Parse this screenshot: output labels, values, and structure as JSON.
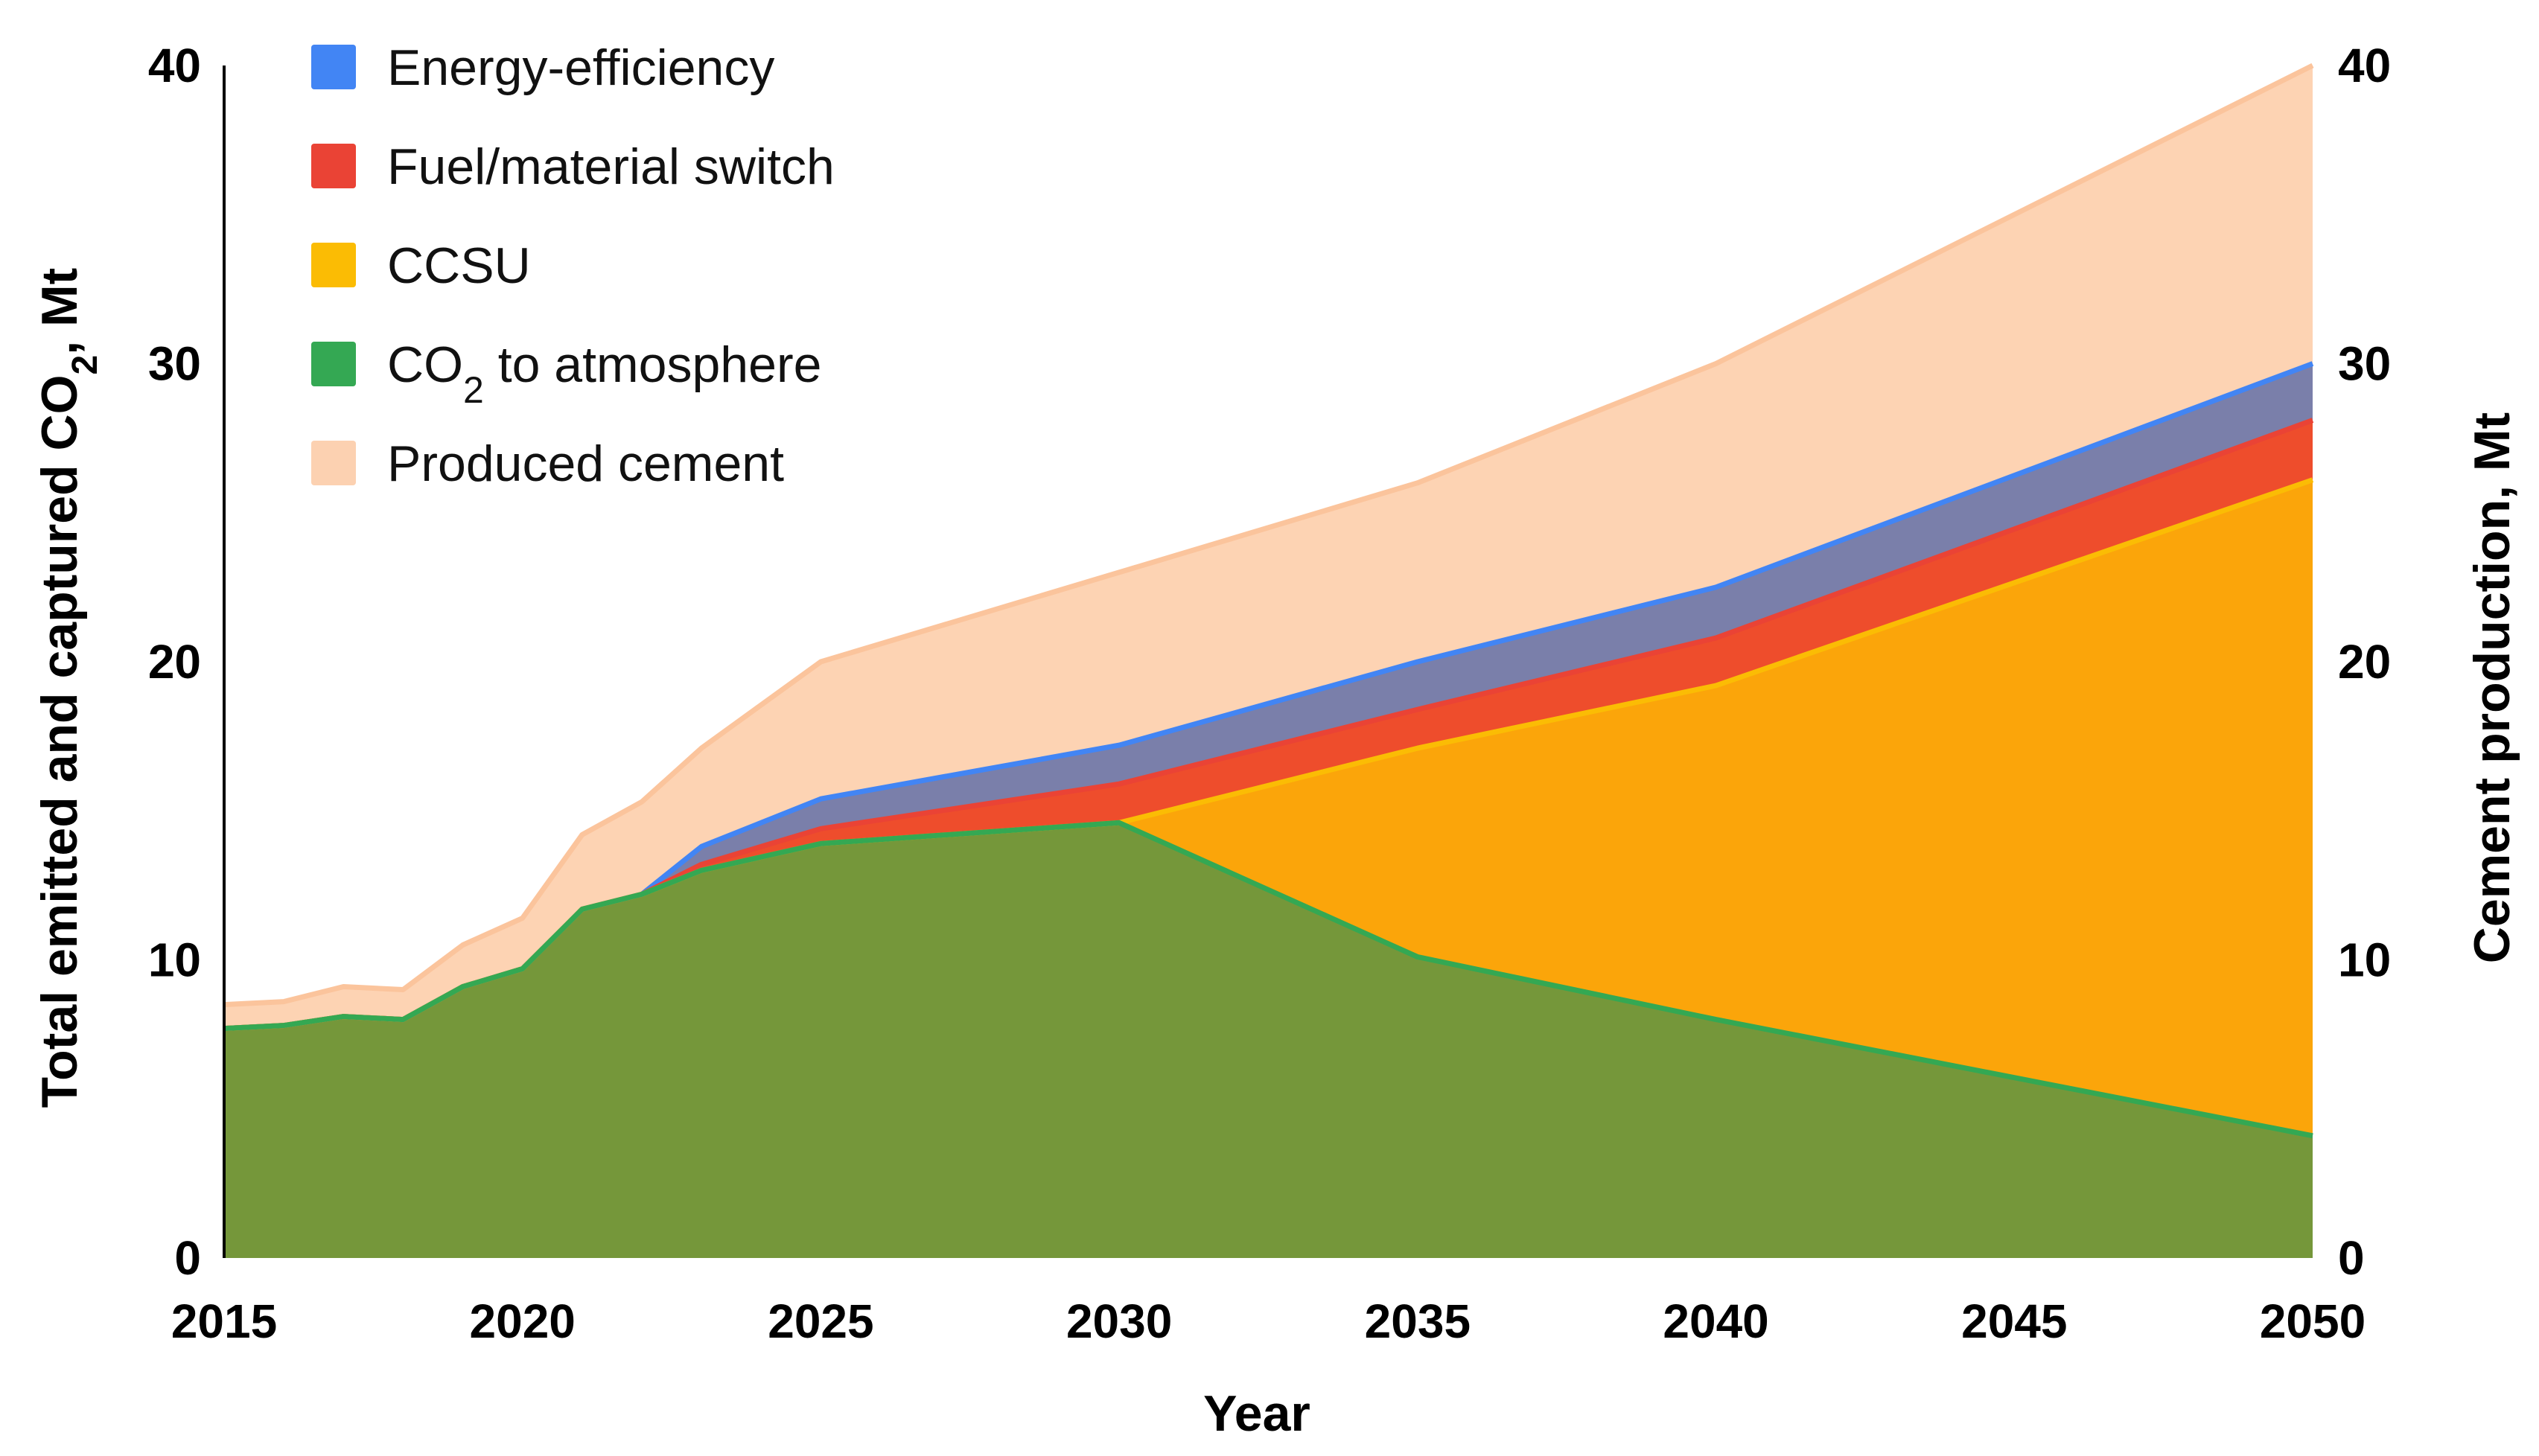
{
  "chart_data": {
    "type": "area",
    "title": "",
    "xlabel": "Year",
    "ylabel": "Total emitted and captured CO₂, Mt",
    "ylabel_parts": [
      "Total emitted and captured CO",
      "2",
      ", Mt"
    ],
    "y2label": "Cement production, Mt",
    "xlim": [
      2015,
      2050
    ],
    "ylim": [
      0,
      40
    ],
    "y2lim": [
      0,
      40
    ],
    "x_ticks": [
      "2015",
      "2020",
      "2025",
      "2030",
      "2035",
      "2040",
      "2045",
      "2050"
    ],
    "y_ticks": [
      "0",
      "10",
      "20",
      "30",
      "40"
    ],
    "y2_ticks": [
      "0",
      "10",
      "20",
      "30",
      "40"
    ],
    "legend_placement": "top-left",
    "legend": [
      {
        "label": "Energy-efficiency",
        "color": "#4285f4"
      },
      {
        "label": "Fuel/material switch",
        "color": "#ea4335"
      },
      {
        "label": "CCSU",
        "color": "#fbbc04"
      },
      {
        "label": "CO₂ to atmosphere",
        "label_parts": [
          "CO",
          "2",
          " to atmosphere"
        ],
        "color": "#34a853"
      },
      {
        "label": "Produced cement",
        "color": "#fcd1b1"
      }
    ],
    "x": [
      2015,
      2016,
      2017,
      2018,
      2019,
      2020,
      2021,
      2022,
      2023,
      2025,
      2030,
      2035,
      2040,
      2050
    ],
    "series": [
      {
        "name": "CO₂ to atmosphere",
        "fill": "#75973a",
        "line": "#34a853",
        "values": [
          7.7,
          7.8,
          8.1,
          8.0,
          9.1,
          9.7,
          11.7,
          12.2,
          13.0,
          13.9,
          14.6,
          10.1,
          8.0,
          4.1
        ]
      },
      {
        "name": "CCSU",
        "fill": "#fba50a",
        "line": "#fbbc04",
        "values": [
          7.7,
          7.8,
          8.1,
          8.0,
          9.1,
          9.7,
          11.7,
          12.2,
          13.0,
          13.9,
          14.6,
          17.1,
          19.2,
          26.1
        ]
      },
      {
        "name": "Fuel/material switch",
        "fill": "#ee4d2c",
        "line": "#ea4335",
        "values": [
          7.7,
          7.8,
          8.1,
          8.0,
          9.1,
          9.7,
          11.7,
          12.2,
          13.2,
          14.4,
          15.9,
          18.4,
          20.8,
          28.1
        ]
      },
      {
        "name": "Energy-efficiency",
        "fill": "#7a7faa",
        "line": "#4285f4",
        "values": [
          7.7,
          7.8,
          8.1,
          8.0,
          9.1,
          9.7,
          11.7,
          12.2,
          13.8,
          15.4,
          17.2,
          20.0,
          22.5,
          30.0
        ]
      },
      {
        "name": "Produced cement",
        "fill": "#fdd3b3",
        "line": "#fbc49c",
        "values": [
          8.5,
          8.6,
          9.1,
          9.0,
          10.5,
          11.4,
          14.2,
          15.3,
          17.1,
          20.0,
          23.0,
          26.0,
          30.0,
          40.0
        ]
      }
    ]
  }
}
